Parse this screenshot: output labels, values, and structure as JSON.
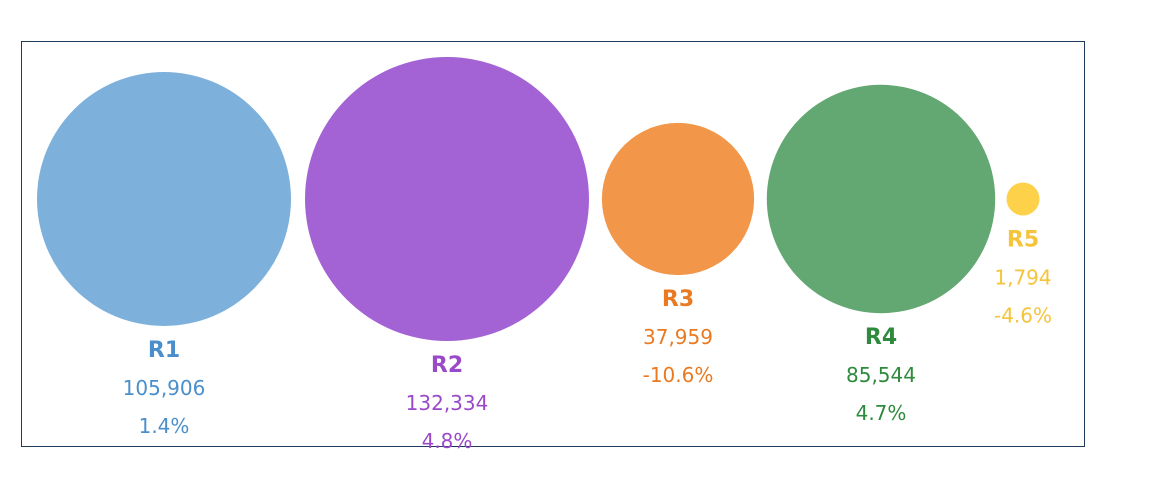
{
  "chart_data": {
    "type": "bubble",
    "title": "",
    "series": [
      {
        "name": "R1",
        "value": 105906,
        "value_label": "105,906",
        "change_label": "1.4%",
        "fill": "#7db1db",
        "text_color": "#4a8fcb"
      },
      {
        "name": "R2",
        "value": 132334,
        "value_label": "132,334",
        "change_label": "4.8%",
        "fill": "#a463d5",
        "text_color": "#9a49c9"
      },
      {
        "name": "R3",
        "value": 37959,
        "value_label": "37,959",
        "change_label": "-10.6%",
        "fill": "#f2974a",
        "text_color": "#ea7a22"
      },
      {
        "name": "R4",
        "value": 85544,
        "value_label": "85,544",
        "change_label": "4.7%",
        "fill": "#63a872",
        "text_color": "#2e8a3d"
      },
      {
        "name": "R5",
        "value": 1794,
        "value_label": "1,794",
        "change_label": "-4.6%",
        "fill": "#fdd24a",
        "text_color": "#f5c43a"
      }
    ]
  },
  "colors": {
    "frame_border": "#1f3a5a",
    "background": "#ffffff"
  }
}
